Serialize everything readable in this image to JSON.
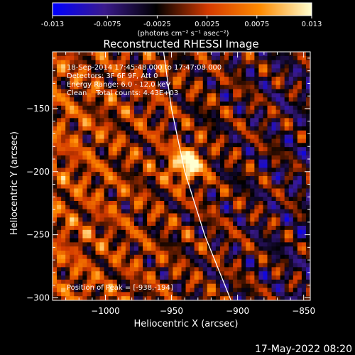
{
  "colorbar": {
    "min_label": "-0.013",
    "tick_labels": [
      "-0.013",
      "-0.0075",
      "-0.0025",
      "0.0025",
      "0.0075",
      "0.013"
    ],
    "units_label": "(photons cm⁻² s⁻¹ asec⁻²)",
    "range": [
      -0.013,
      0.013
    ],
    "colors": [
      "#0000ff",
      "#3a1a8c",
      "#000000",
      "#d43a00",
      "#ff8a00",
      "#ffffd0"
    ]
  },
  "chart_data": {
    "type": "heatmap",
    "title": "Reconstructed RHESSI Image",
    "xlabel": "Heliocentric X (arcsec)",
    "ylabel": "Heliocentric Y (arcsec)",
    "xlim": [
      -1040,
      -845
    ],
    "ylim": [
      -302,
      -105
    ],
    "x_ticks": [
      -1000,
      -950,
      -900,
      -850
    ],
    "x_tick_labels": [
      "−1000",
      "−950",
      "−900",
      "−850"
    ],
    "y_ticks": [
      -150,
      -200,
      -250,
      -300
    ],
    "y_tick_labels": [
      "−150",
      "−200",
      "−250",
      "−300"
    ],
    "peak": [
      -938,
      -194
    ],
    "limb_curve": [
      [
        -956,
        -105
      ],
      [
        -950,
        -150
      ],
      [
        -940,
        -200
      ],
      [
        -925,
        -250
      ],
      [
        -905,
        -302
      ]
    ],
    "annotations": {
      "time_range": "18-Sep-2014 17:45:48.000 to 17:47:08.000",
      "detectors": "Detectors: 3F 6F 9F, Att 0",
      "energy": "Energy Range: 6.0 - 12.0 keV",
      "clean": "Clean    Total counts: 4.43E+03",
      "peak_text": "Position of Peak = [-938,-194]"
    }
  },
  "footer": {
    "timestamp": "17-May-2022 08:20"
  }
}
